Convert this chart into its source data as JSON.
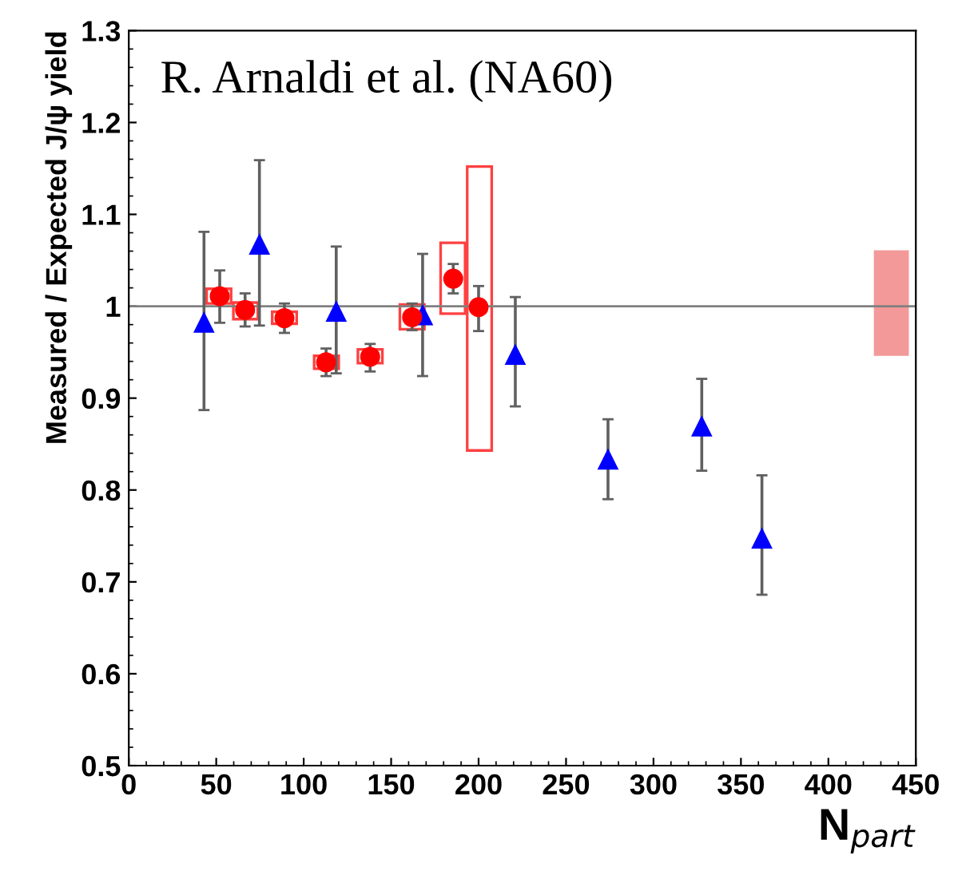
{
  "chart_data": {
    "type": "scatter",
    "xlabel": "N$_{part}$",
    "ylabel": "Measured / Expected J/ψ yield",
    "annotations": [
      "R. Arnaldi et al. (NA60)"
    ],
    "xlim": [
      0,
      450
    ],
    "xticks": [
      0,
      50,
      100,
      150,
      200,
      250,
      300,
      350,
      400,
      450
    ],
    "ylim": [
      0.5,
      1.3
    ],
    "yticks": [
      0.5,
      0.6,
      0.7,
      0.8,
      0.9,
      1,
      1.1,
      1.2,
      1.3
    ],
    "ref_lines": [
      {
        "axis": "y",
        "value": 1,
        "color": "#808080"
      }
    ],
    "grid": false,
    "legend": false,
    "series": [
      {
        "type": "bar",
        "color": "#ff4040",
        "line_style": "solid",
        "x": [
          51.5,
          66.8,
          89,
          113,
          138,
          162,
          185.3,
          200.5
        ],
        "base": [
          1.003,
          0.986,
          0.981,
          0.932,
          0.938,
          0.975,
          0.992,
          0.843
        ],
        "values": [
          0.016,
          0.018,
          0.013,
          0.014,
          0.015,
          0.027,
          0.077,
          0.309
        ]
      },
      {
        "type": "bar",
        "color": "#f08080",
        "x": [
          436
        ],
        "base": [
          0.946
        ],
        "values": [
          0.115
        ]
      },
      {
        "marker": "triangle",
        "color": "#0000ff",
        "x": [
          43,
          74.7,
          118.6,
          168,
          221,
          274,
          327.6,
          362
        ],
        "values": [
          0.982,
          1.067,
          0.994,
          0.99,
          0.947,
          0.833,
          0.869,
          0.747
        ],
        "errors": [
          [
            0.887,
            1.081
          ],
          [
            0.979,
            1.159
          ],
          [
            0.927,
            1.065
          ],
          [
            0.924,
            1.057
          ],
          [
            0.891,
            1.01
          ],
          [
            0.79,
            0.877
          ],
          [
            0.821,
            0.921
          ],
          [
            0.686,
            0.816
          ]
        ]
      },
      {
        "marker": "circle",
        "color": "#ff0000",
        "x": [
          52,
          66.5,
          89,
          112.8,
          138,
          162,
          185.5,
          200
        ],
        "values": [
          1.011,
          0.996,
          0.987,
          0.939,
          0.945,
          0.988,
          1.03,
          0.999
        ],
        "errors": [
          [
            0.982,
            1.039
          ],
          [
            0.978,
            1.014
          ],
          [
            0.971,
            1.003
          ],
          [
            0.924,
            0.954
          ],
          [
            0.929,
            0.959
          ],
          [
            0.974,
            1.003
          ],
          [
            1.014,
            1.046
          ],
          [
            0.973,
            1.022
          ]
        ]
      }
    ]
  }
}
